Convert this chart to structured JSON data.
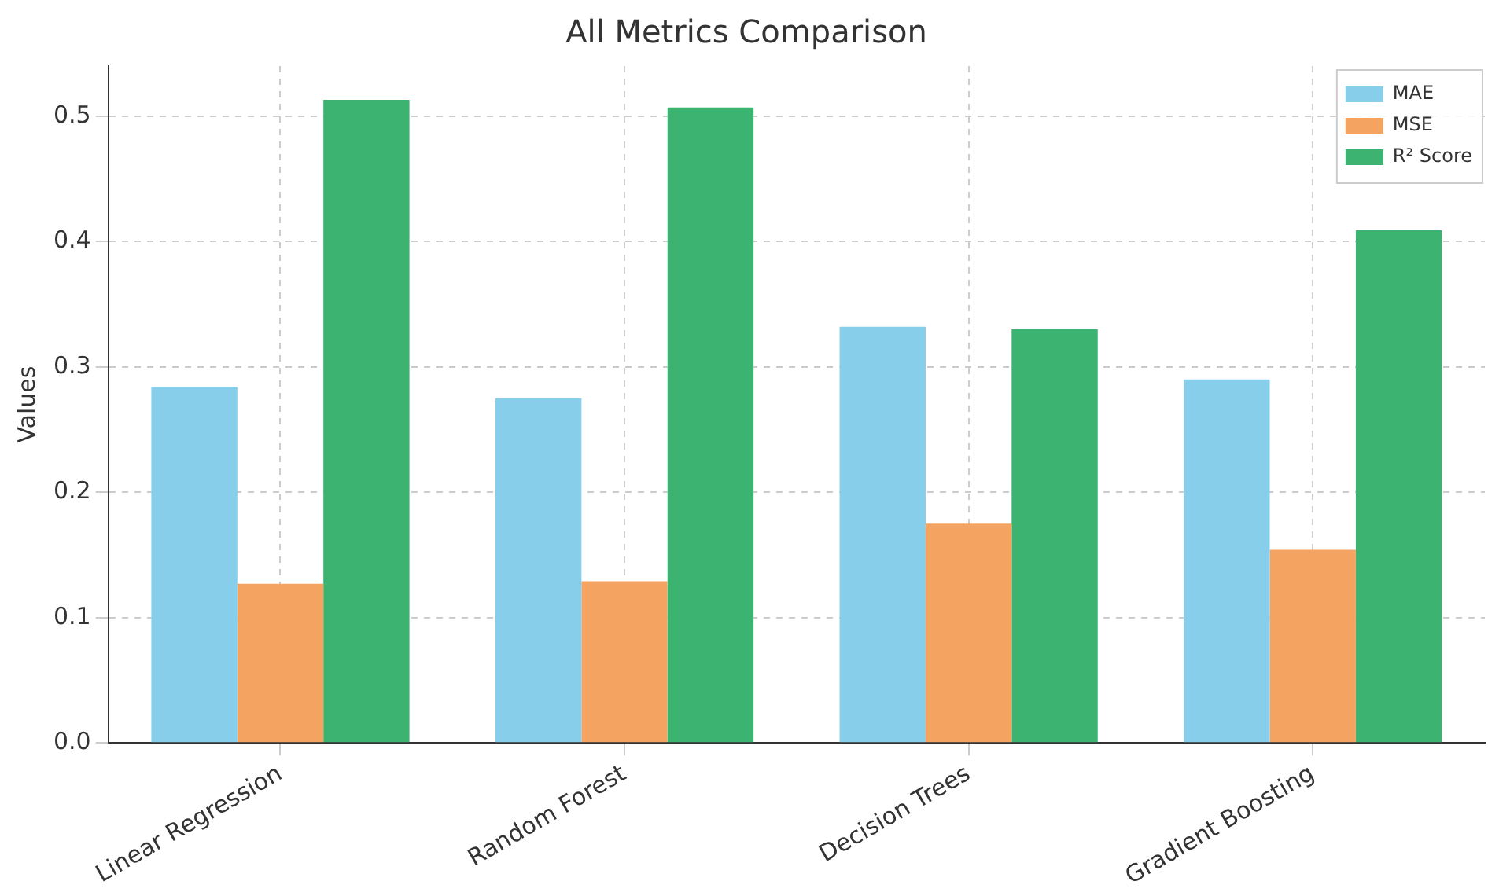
{
  "chart_data": {
    "type": "bar",
    "title": "All Metrics Comparison",
    "ylabel": "Values",
    "categories": [
      "Linear Regression",
      "Random Forest",
      "Decision Trees",
      "Gradient Boosting"
    ],
    "series": [
      {
        "name": "MAE",
        "color": "#87ceeb",
        "values": [
          0.284,
          0.275,
          0.332,
          0.29
        ]
      },
      {
        "name": "MSE",
        "color": "#f4a460",
        "values": [
          0.127,
          0.129,
          0.175,
          0.154
        ]
      },
      {
        "name": "R² Score",
        "color": "#3cb371",
        "values": [
          0.513,
          0.507,
          0.33,
          0.409
        ]
      }
    ],
    "ylim": [
      0,
      0.54
    ],
    "yticks": [
      {
        "value": 0,
        "label": "0.0"
      },
      0.1,
      0.2,
      0.3,
      0.4,
      0.5
    ],
    "grid": true,
    "legend": "top right"
  }
}
